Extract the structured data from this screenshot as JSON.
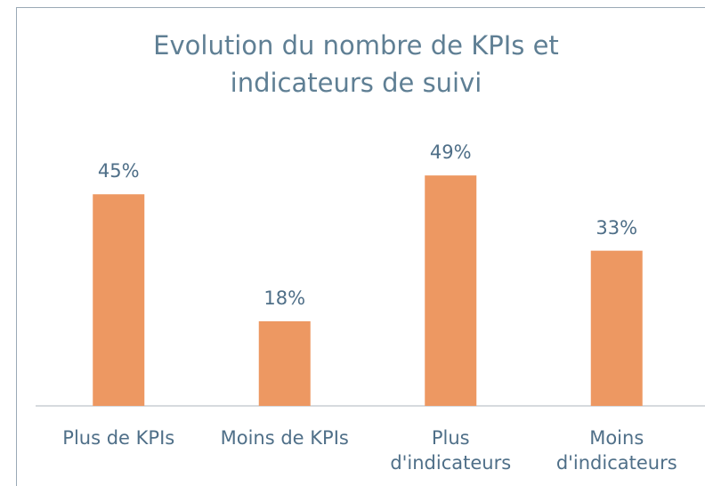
{
  "chart_data": {
    "type": "bar",
    "title": "Evolution du nombre de KPIs et indicateurs de suivi",
    "categories": [
      "Plus de KPIs",
      "Moins de KPIs",
      "Plus d'indicateurs",
      "Moins d'indicateurs"
    ],
    "values": [
      45,
      18,
      49,
      33
    ],
    "value_labels": [
      "45%",
      "18%",
      "49%",
      "33%"
    ],
    "color": "#ed9862",
    "ylim": [
      0,
      60
    ],
    "grid": false
  }
}
